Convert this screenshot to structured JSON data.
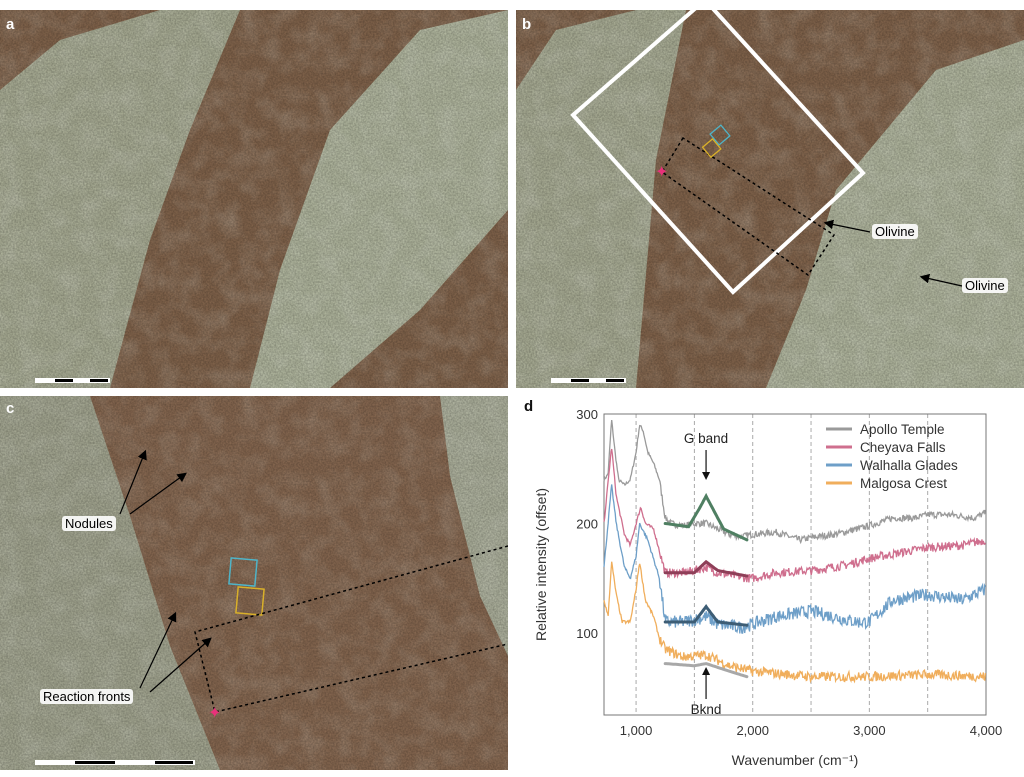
{
  "panels": {
    "a": {
      "label": "a"
    },
    "b": {
      "label": "b",
      "annotations": [
        "Olivine",
        "Olivine"
      ]
    },
    "c": {
      "label": "c",
      "annotations": [
        "Nodules",
        "Reaction fronts"
      ]
    },
    "d": {
      "label": "d"
    }
  },
  "colors": {
    "rock_matrix": "#8a6a50",
    "rock_light": "#b9bfa5",
    "aoi_box": "#ffffff",
    "star": "#e8317a",
    "square_cyan": "#4fb4c8",
    "square_yellow": "#d9b02a"
  },
  "chart_data": {
    "type": "line",
    "xlabel": "Wavenumber (cm⁻¹)",
    "ylabel": "Relative intensity (offset)",
    "xlim": [
      725,
      4000
    ],
    "ylim": [
      25,
      300
    ],
    "xticks": [
      1000,
      2000,
      3000,
      4000
    ],
    "xtick_labels": [
      "1,000",
      "2,000",
      "3,000",
      "4,000"
    ],
    "yticks": [
      100,
      200,
      300
    ],
    "ytick_labels": [
      "100",
      "200",
      "300"
    ],
    "grid_x_dashed": [
      1000,
      1500,
      2000,
      2500,
      3000,
      3500
    ],
    "legend_position": "top-right",
    "annotations": [
      {
        "text": "G band",
        "x": 1600
      },
      {
        "text": "Bknd",
        "x": 1600
      }
    ],
    "series": [
      {
        "name": "Apollo Temple",
        "color": "#9a9a9a",
        "x": [
          725,
          760,
          790,
          820,
          850,
          900,
          950,
          1000,
          1030,
          1060,
          1100,
          1150,
          1200,
          1250,
          1300,
          1400,
          1500,
          1600,
          1700,
          1800,
          1900,
          2000,
          2200,
          2400,
          2500,
          2700,
          2900,
          3000,
          3200,
          3400,
          3500,
          3700,
          3900,
          4000
        ],
        "y": [
          240,
          245,
          295,
          265,
          240,
          235,
          240,
          265,
          290,
          285,
          265,
          255,
          240,
          205,
          200,
          198,
          200,
          200,
          195,
          190,
          188,
          190,
          192,
          185,
          187,
          190,
          195,
          198,
          205,
          205,
          208,
          208,
          205,
          210
        ],
        "fit": {
          "color": "#4f7f62",
          "x": [
            1250,
            1450,
            1550,
            1600,
            1650,
            1750,
            1950
          ],
          "y": [
            200,
            197,
            215,
            225,
            215,
            195,
            185
          ]
        }
      },
      {
        "name": "Cheyava Falls",
        "color": "#cf6f8e",
        "x": [
          725,
          790,
          830,
          900,
          950,
          1000,
          1040,
          1080,
          1150,
          1200,
          1250,
          1400,
          1500,
          1600,
          1700,
          1800,
          1950,
          2000,
          2200,
          2500,
          2800,
          3000,
          3200,
          3500,
          3800,
          4000
        ],
        "y": [
          200,
          270,
          225,
          190,
          180,
          200,
          215,
          200,
          195,
          175,
          155,
          155,
          157,
          160,
          155,
          153,
          150,
          150,
          155,
          157,
          162,
          168,
          172,
          178,
          180,
          185
        ],
        "fit": {
          "color": "#8e3f58",
          "x": [
            1250,
            1500,
            1600,
            1700,
            1950
          ],
          "y": [
            155,
            155,
            165,
            157,
            152
          ]
        }
      },
      {
        "name": "Walhalla Glades",
        "color": "#6e9fc8",
        "x": [
          725,
          790,
          830,
          900,
          950,
          1000,
          1030,
          1100,
          1200,
          1250,
          1400,
          1500,
          1600,
          1700,
          1900,
          2000,
          2200,
          2500,
          2800,
          2900,
          3000,
          3200,
          3500,
          3800,
          4000
        ],
        "y": [
          160,
          235,
          200,
          160,
          150,
          170,
          200,
          185,
          150,
          110,
          110,
          112,
          115,
          108,
          105,
          108,
          115,
          120,
          112,
          110,
          110,
          130,
          135,
          130,
          140
        ],
        "fit": {
          "color": "#3d5d75",
          "x": [
            1250,
            1500,
            1600,
            1700,
            1950
          ],
          "y": [
            110,
            110,
            124,
            110,
            107
          ]
        }
      },
      {
        "name": "Malgosa Crest",
        "color": "#f0ae5c",
        "x": [
          725,
          760,
          790,
          830,
          880,
          950,
          1000,
          1030,
          1080,
          1150,
          1200,
          1250,
          1400,
          1600,
          1800,
          2000,
          2500,
          3000,
          3500,
          4000
        ],
        "y": [
          130,
          115,
          165,
          135,
          110,
          110,
          140,
          165,
          130,
          115,
          95,
          85,
          78,
          80,
          70,
          65,
          60,
          60,
          62,
          60
        ],
        "fit": {
          "color": "#a8a8a8",
          "x": [
            1250,
            1500,
            1600,
            1800,
            1950
          ],
          "y": [
            72,
            70,
            72,
            65,
            60
          ]
        }
      }
    ]
  }
}
